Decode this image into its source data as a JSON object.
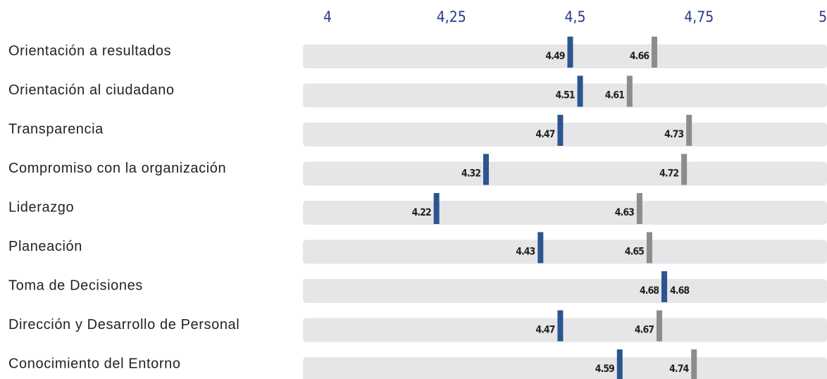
{
  "chart_data": {
    "type": "dot",
    "categories": [
      "Orientación a resultados",
      "Orientación al ciudadano",
      "Transparencia",
      "Compromiso con la organización",
      "Liderazgo",
      "Planeación",
      "Toma de Decisiones",
      "Dirección y Desarrollo de Personal",
      "Conocimiento del Entorno"
    ],
    "series": [
      {
        "color": "#2b5591",
        "values": [
          4.49,
          4.51,
          4.47,
          4.32,
          4.22,
          4.43,
          4.68,
          4.47,
          4.59
        ]
      },
      {
        "color": "#8c8c8c",
        "values": [
          4.66,
          4.61,
          4.73,
          4.72,
          4.63,
          4.65,
          4.68,
          4.67,
          4.74
        ]
      }
    ],
    "xlim": [
      4,
      5
    ],
    "xticks": [
      4,
      {
        "value": 4.25,
        "label": "4,25"
      },
      {
        "value": 4.5,
        "label": "4,5"
      },
      {
        "value": 4.75,
        "label": "4,75"
      },
      5
    ]
  }
}
